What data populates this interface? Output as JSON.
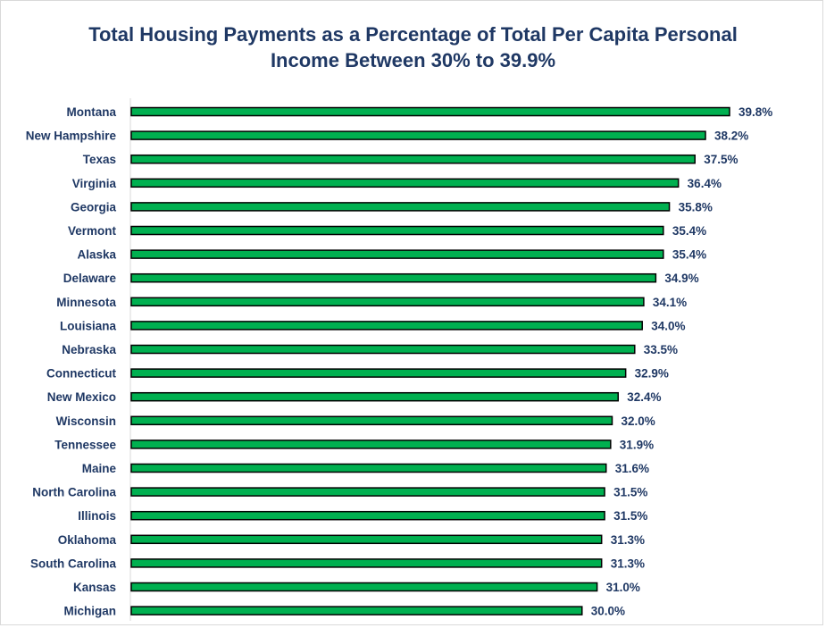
{
  "chart_data": {
    "type": "bar",
    "orientation": "horizontal",
    "title": "Total Housing Payments as a Percentage of Total Per Capita Personal Income Between 30% to 39.9%",
    "title_lines": [
      "Total Housing Payments as a Percentage of Total Per Capita Personal",
      "Income Between 30% to 39.9%"
    ],
    "xlabel": "",
    "ylabel": "",
    "categories": [
      "Montana",
      "New Hampshire",
      "Texas",
      "Virginia",
      "Georgia",
      "Vermont",
      "Alaska",
      "Delaware",
      "Minnesota",
      "Louisiana",
      "Nebraska",
      "Connecticut",
      "New Mexico",
      "Wisconsin",
      "Tennessee",
      "Maine",
      "North Carolina",
      "Illinois",
      "Oklahoma",
      "South Carolina",
      "Kansas",
      "Michigan"
    ],
    "values": [
      39.8,
      38.2,
      37.5,
      36.4,
      35.8,
      35.4,
      35.4,
      34.9,
      34.1,
      34.0,
      33.5,
      32.9,
      32.4,
      32.0,
      31.9,
      31.6,
      31.5,
      31.5,
      31.3,
      31.3,
      31.0,
      30.0
    ],
    "value_labels": [
      "39.8%",
      "38.2%",
      "37.5%",
      "36.4%",
      "35.8%",
      "35.4%",
      "35.4%",
      "34.9%",
      "34.1%",
      "34.0%",
      "33.5%",
      "32.9%",
      "32.4%",
      "32.0%",
      "31.9%",
      "31.6%",
      "31.5%",
      "31.5%",
      "31.3%",
      "31.3%",
      "31.0%",
      "30.0%"
    ],
    "xlim": [
      0,
      40
    ],
    "grid": false,
    "legend": "none",
    "colors": {
      "bar_fill": "#00b050",
      "bar_border": "#000000",
      "text": "#1f3864",
      "axis": "#d9d9d9"
    }
  }
}
